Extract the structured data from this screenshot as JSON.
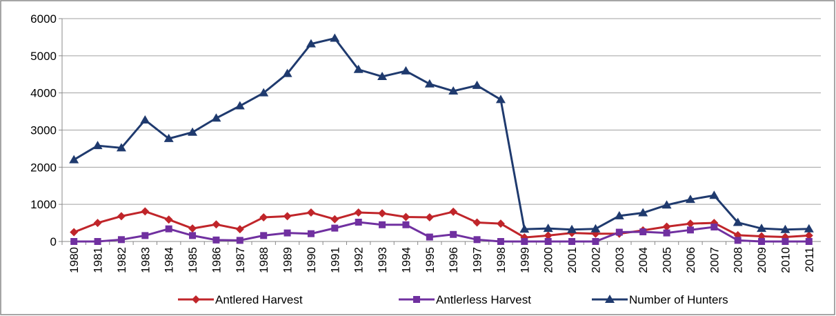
{
  "chart_data": {
    "type": "line",
    "categories": [
      "1980",
      "1981",
      "1982",
      "1983",
      "1984",
      "1985",
      "1986",
      "1987",
      "1988",
      "1989",
      "1990",
      "1991",
      "1992",
      "1993",
      "1994",
      "1995",
      "1996",
      "1997",
      "1998",
      "1999",
      "2000",
      "2001",
      "2002",
      "2003",
      "2004",
      "2005",
      "2006",
      "2007",
      "2008",
      "2009",
      "2010",
      "2011"
    ],
    "series": [
      {
        "name": "Antlered Harvest",
        "color": "#c0252a",
        "marker": "diamond",
        "values": [
          250,
          500,
          680,
          810,
          590,
          350,
          460,
          330,
          650,
          680,
          780,
          600,
          780,
          760,
          660,
          650,
          800,
          510,
          480,
          110,
          160,
          230,
          210,
          210,
          300,
          400,
          480,
          500,
          170,
          140,
          120,
          160
        ]
      },
      {
        "name": "Antlerless Harvest",
        "color": "#7030a0",
        "marker": "square",
        "values": [
          0,
          0,
          50,
          160,
          340,
          160,
          40,
          30,
          160,
          230,
          210,
          360,
          520,
          450,
          450,
          120,
          190,
          50,
          0,
          0,
          0,
          0,
          0,
          250,
          260,
          230,
          310,
          390,
          30,
          0,
          0,
          0
        ]
      },
      {
        "name": "Number of Hunters",
        "color": "#1f3a6e",
        "marker": "triangle",
        "values": [
          2200,
          2580,
          2520,
          3270,
          2770,
          2940,
          3320,
          3650,
          4000,
          4520,
          5320,
          5470,
          4630,
          4440,
          4590,
          4240,
          4050,
          4200,
          3820,
          330,
          350,
          320,
          340,
          690,
          770,
          980,
          1130,
          1240,
          510,
          350,
          320,
          340
        ]
      }
    ],
    "ylim": [
      0,
      6000
    ],
    "yticks": [
      0,
      1000,
      2000,
      3000,
      4000,
      5000,
      6000
    ],
    "grid": true,
    "legend": "bottom"
  }
}
